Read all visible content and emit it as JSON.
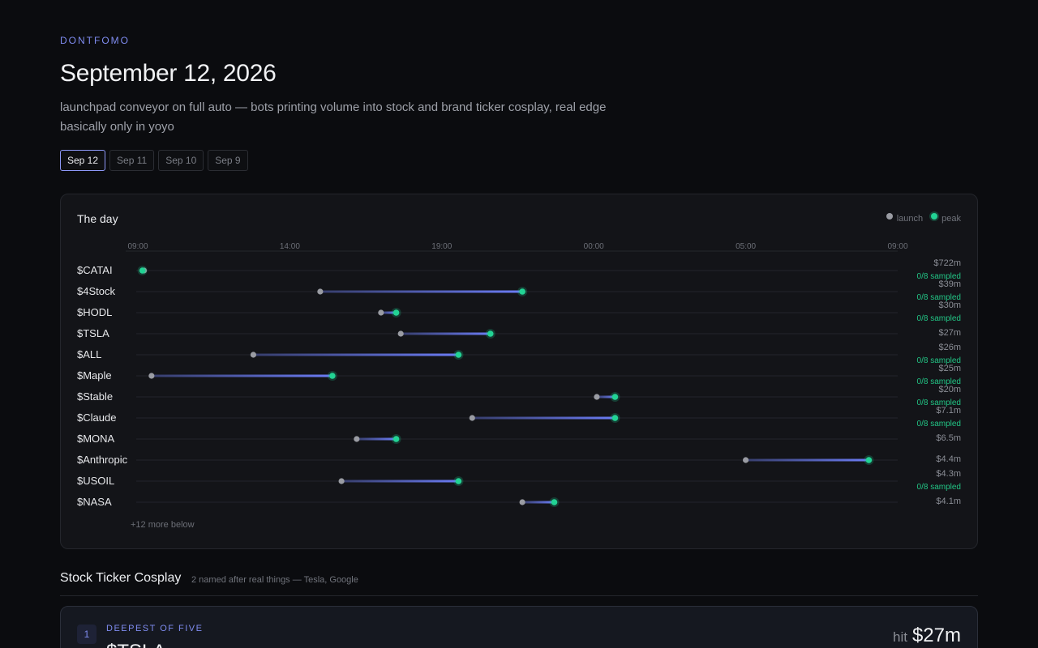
{
  "brand": "DONTFOMO",
  "title": "September 12, 2026",
  "subtitle": "launchpad conveyor on full auto — bots printing volume into stock and brand ticker cosplay, real edge basically only in yoyo",
  "tabs": [
    {
      "label": "Sep 12",
      "active": true
    },
    {
      "label": "Sep 11",
      "active": false
    },
    {
      "label": "Sep 10",
      "active": false
    },
    {
      "label": "Sep 9",
      "active": false
    }
  ],
  "day_card": {
    "title": "The day",
    "legend": {
      "launch": "launch",
      "peak": "peak"
    },
    "more": "+12 more below"
  },
  "chart_data": {
    "type": "timeline",
    "x_ticks": [
      "09:00",
      "14:00",
      "19:00",
      "00:00",
      "05:00",
      "09:00"
    ],
    "x_unit": "hours since 09:00",
    "xlim": [
      0,
      25
    ],
    "colors": {
      "launch": "#9a9ca3",
      "peak": "#22d394",
      "bar": "#6b7cf5"
    },
    "rows": [
      {
        "ticker": "$CATAI",
        "launch": 0.2,
        "peak": 0.15,
        "value": "$722m",
        "sampled": "0/8 sampled"
      },
      {
        "ticker": "$4Stock",
        "launch": 6.0,
        "peak": 12.65,
        "value": "$39m",
        "sampled": "0/8 sampled"
      },
      {
        "ticker": "$HODL",
        "launch": 8.0,
        "peak": 8.5,
        "value": "$30m",
        "sampled": "0/8 sampled"
      },
      {
        "ticker": "$TSLA",
        "launch": 8.65,
        "peak": 11.6,
        "value": "$27m",
        "sampled": ""
      },
      {
        "ticker": "$ALL",
        "launch": 3.8,
        "peak": 10.55,
        "value": "$26m",
        "sampled": "0/8 sampled"
      },
      {
        "ticker": "$Maple",
        "launch": 0.45,
        "peak": 6.4,
        "value": "$25m",
        "sampled": "0/8 sampled"
      },
      {
        "ticker": "$Stable",
        "launch": 15.1,
        "peak": 15.7,
        "value": "$20m",
        "sampled": "0/8 sampled"
      },
      {
        "ticker": "$Claude",
        "launch": 11.0,
        "peak": 15.7,
        "value": "$7.1m",
        "sampled": "0/8 sampled"
      },
      {
        "ticker": "$MONA",
        "launch": 7.2,
        "peak": 8.5,
        "value": "$6.5m",
        "sampled": ""
      },
      {
        "ticker": "$Anthropic",
        "launch": 20.0,
        "peak": 24.05,
        "value": "$4.4m",
        "sampled": ""
      },
      {
        "ticker": "$USOIL",
        "launch": 6.7,
        "peak": 10.55,
        "value": "$4.3m",
        "sampled": "0/8 sampled"
      },
      {
        "ticker": "$NASA",
        "launch": 12.65,
        "peak": 13.7,
        "value": "$4.1m",
        "sampled": ""
      }
    ]
  },
  "section": {
    "title": "Stock Ticker Cosplay",
    "subtitle": "2 named after real things — Tesla, Google"
  },
  "pick": {
    "rank": "1",
    "tag": "DEEPEST OF FIVE",
    "name": "$TSLA",
    "hit_label": "hit",
    "hit_value": "$27m"
  }
}
